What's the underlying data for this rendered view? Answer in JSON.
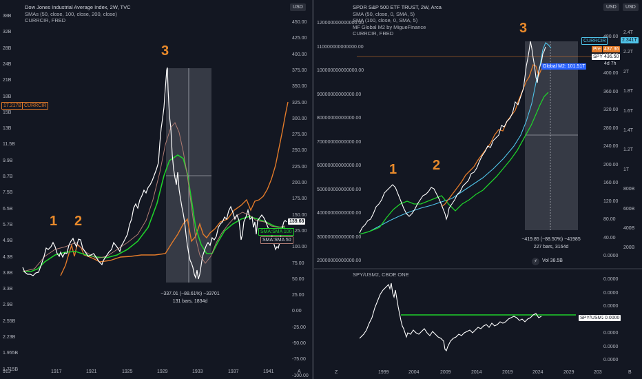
{
  "left": {
    "legend": {
      "title": "Dow Jones Industrial Average Index, 2W, TVC",
      "line2": "SMAs (50, close, 100, close, 200, close)",
      "line3": "CURRCIR, FRED"
    },
    "currency_button": "USD",
    "left_axis_ticks": [
      "38B",
      "32B",
      "28B",
      "24B",
      "21B",
      "18B",
      "15B",
      "13B",
      "11.5B",
      "9.9B",
      "8.7B",
      "7.5B",
      "6.5B",
      "5.7B",
      "4.9B",
      "4.3B",
      "3.8B",
      "3.3B",
      "2.9B",
      "2.55B",
      "2.23B",
      "1.955B",
      "1.715B"
    ],
    "right_axis_ticks": [
      "450.00",
      "425.00",
      "400.00",
      "375.00",
      "350.00",
      "325.00",
      "300.00",
      "275.00",
      "250.00",
      "225.00",
      "200.00",
      "175.00",
      "150.00",
      "125.00",
      "100.00",
      "75.00",
      "50.00",
      "25.00",
      "0.00",
      "-25.00",
      "-50.00",
      "-75.00",
      "-100.00"
    ],
    "x_ticks": [
      "913",
      "1917",
      "1921",
      "1925",
      "1929",
      "1933",
      "1937",
      "1941"
    ],
    "currcir_value": "17.217B",
    "currcir_label": "CURRCIR",
    "price_label": "139.68",
    "sma100_label": "SMA:SMA 100",
    "sma50_label": "SMA:SMA 50",
    "annotations": [
      "1",
      "2",
      "3"
    ],
    "measure_line1": "−337.01 (−88.61%) −33701",
    "measure_line2": "131 bars, 1834d",
    "axis_corner": "A"
  },
  "right": {
    "legend": {
      "title": "SPDR S&P 500 ETF TRUST, 2W, Arca",
      "line2": "SMA (50, close, 0, SMA, 5)",
      "line3": "SMA (100, close, 0, SMA, 5)",
      "line4": "MF Global M2 by MigueFinance",
      "line5": "CURRCIR, FRED"
    },
    "currency_button_1": "USD",
    "currency_button_2": "USD",
    "left_axis_ticks": [
      "120000000000000.00",
      "110000000000000.00",
      "100000000000000.00",
      "90000000000000.00",
      "80000000000000.00",
      "70000000000000.00",
      "60000000000000.00",
      "50000000000000.00",
      "40000000000000.00",
      "30000000000000.00",
      "20000000000000.00"
    ],
    "right_axis_ticks": [
      "480.00",
      "440.00",
      "400.00",
      "360.00",
      "320.00",
      "280.00",
      "240.00",
      "200.00",
      "160.00",
      "120.00",
      "80.00",
      "40.00",
      "0.0000"
    ],
    "far_right_ticks": [
      "2.4T",
      "2.2T",
      "2T",
      "1.8T",
      "1.6T",
      "1.4T",
      "1.2T",
      "1T",
      "800B",
      "600B",
      "400B",
      "200B"
    ],
    "currcir_label": "CURRCIR",
    "currcir_value": "2.341T",
    "pre_label": "Pre",
    "pre_value": "437.36",
    "spy_label": "SPY",
    "spy_value": "436.50",
    "countdown": "4d 7h",
    "global_m2_label": "Global M2: 101.51T",
    "annotations": [
      "1",
      "2",
      "3"
    ],
    "measure_line1": "−419.85 (−88.50%) −41985",
    "measure_line2": "227 bars, 3164d",
    "vol_label": "Vol 38.5B",
    "sub": {
      "legend": "SPY/USM2, CBOE ONE",
      "right_ticks": [
        "0.0000",
        "0.0000",
        "0.0000",
        "0.0000",
        "0.0000",
        "0.0000",
        "0.0000"
      ],
      "spy_usm2_label": "SPY/USM2",
      "spy_usm2_value": "0.0000"
    },
    "x_ticks": [
      "1999",
      "2004",
      "2009",
      "2014",
      "2019",
      "2024",
      "2029",
      "203"
    ],
    "x_corner_left": "Z",
    "x_corner_right": "B"
  }
}
